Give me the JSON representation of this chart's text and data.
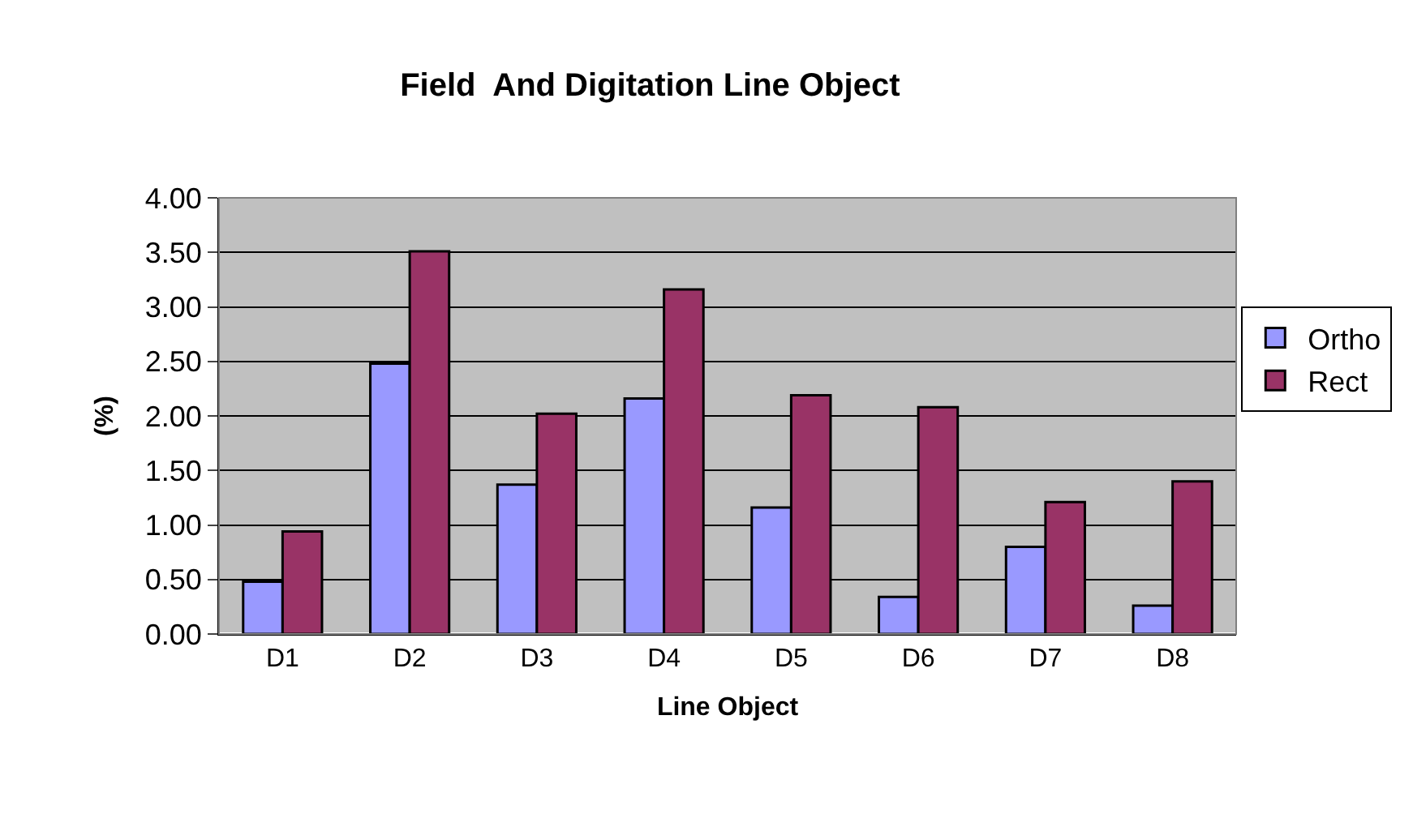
{
  "chart_data": {
    "type": "bar",
    "title": "Field  And Digitation Line Object",
    "xlabel": "Line Object",
    "ylabel": "(%)",
    "categories": [
      "D1",
      "D2",
      "D3",
      "D4",
      "D5",
      "D6",
      "D7",
      "D8"
    ],
    "series": [
      {
        "name": "Ortho",
        "color": "#9999ff",
        "values": [
          0.48,
          2.48,
          1.37,
          2.16,
          1.16,
          0.34,
          0.8,
          0.26
        ]
      },
      {
        "name": "Rect",
        "color": "#993366",
        "values": [
          0.94,
          3.51,
          2.02,
          3.16,
          2.19,
          2.08,
          1.21,
          1.4
        ]
      }
    ],
    "ylim": [
      0,
      4
    ],
    "yticks": [
      {
        "value": 0,
        "label": "0.00"
      },
      {
        "value": 0.5,
        "label": "0.50"
      },
      {
        "value": 1,
        "label": "1.00"
      },
      {
        "value": 1.5,
        "label": "1.50"
      },
      {
        "value": 2,
        "label": "2.00"
      },
      {
        "value": 2.5,
        "label": "2.50"
      },
      {
        "value": 3,
        "label": "3.00"
      },
      {
        "value": 3.5,
        "label": "3.50"
      },
      {
        "value": 4,
        "label": "4.00"
      }
    ],
    "grid": "y",
    "legend": "right"
  }
}
